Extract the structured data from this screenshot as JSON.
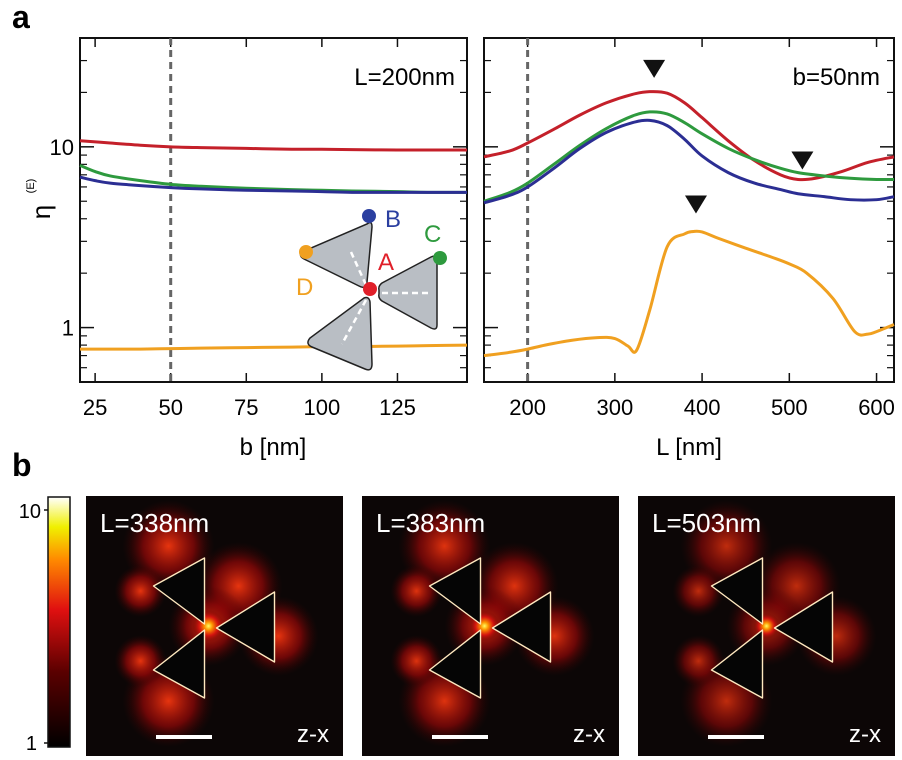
{
  "panel_labels": {
    "a": "a",
    "b": "b"
  },
  "chart_data": [
    {
      "type": "line",
      "id": "left",
      "annotation": "L=200nm",
      "xlabel": "b [nm]",
      "ylabel": "η",
      "ylabel_sup": "(E)",
      "xlim": [
        20,
        148
      ],
      "ylim": [
        0.5,
        40
      ],
      "yscale": "log",
      "xticks": [
        25,
        50,
        75,
        100,
        125
      ],
      "yticks": [
        1,
        10
      ],
      "ytick_labels": [
        "1",
        "10"
      ],
      "vline": 50,
      "series": [
        {
          "color": "#c4202a",
          "x": [
            20,
            30,
            40,
            50,
            60,
            75,
            90,
            100,
            110,
            125,
            135,
            148
          ],
          "y": [
            10.8,
            10.5,
            10.2,
            10.0,
            9.9,
            9.8,
            9.7,
            9.7,
            9.65,
            9.6,
            9.6,
            9.6
          ]
        },
        {
          "color": "#2e9a3e",
          "x": [
            20,
            25,
            30,
            40,
            50,
            60,
            75,
            90,
            100,
            110,
            125,
            135,
            148
          ],
          "y": [
            7.9,
            7.3,
            6.9,
            6.5,
            6.2,
            6.05,
            5.9,
            5.8,
            5.75,
            5.7,
            5.65,
            5.6,
            5.6
          ]
        },
        {
          "color": "#2b2e93",
          "x": [
            20,
            25,
            30,
            40,
            50,
            60,
            75,
            90,
            100,
            110,
            125,
            135,
            148
          ],
          "y": [
            6.8,
            6.5,
            6.3,
            6.1,
            5.95,
            5.85,
            5.75,
            5.7,
            5.65,
            5.6,
            5.6,
            5.6,
            5.6
          ]
        },
        {
          "color": "#f0a020",
          "x": [
            20,
            30,
            40,
            50,
            60,
            75,
            90,
            100,
            110,
            125,
            135,
            148
          ],
          "y": [
            0.76,
            0.76,
            0.76,
            0.765,
            0.77,
            0.775,
            0.78,
            0.785,
            0.785,
            0.79,
            0.795,
            0.8
          ]
        }
      ],
      "inset": {
        "point_labels": [
          "B",
          "C",
          "A",
          "D"
        ],
        "point_colors": [
          "#2b3fa0",
          "#2e9a3e",
          "#e0202a",
          "#f0a020"
        ]
      }
    },
    {
      "type": "line",
      "id": "right",
      "annotation": "b=50nm",
      "xlabel": "L [nm]",
      "xlim": [
        150,
        620
      ],
      "ylim": [
        0.5,
        40
      ],
      "yscale": "log",
      "xticks": [
        200,
        300,
        400,
        500,
        600
      ],
      "yticks": [
        1,
        10
      ],
      "vline": 200,
      "series": [
        {
          "color": "#c4202a",
          "x": [
            150,
            180,
            200,
            230,
            260,
            290,
            320,
            340,
            360,
            380,
            400,
            430,
            460,
            490,
            510,
            530,
            560,
            590,
            620
          ],
          "y": [
            8.8,
            9.5,
            10.5,
            12.5,
            15,
            17.5,
            19.5,
            20.2,
            19.8,
            17.5,
            14.5,
            10.8,
            8.4,
            7.0,
            6.6,
            6.7,
            7.3,
            8.2,
            8.8
          ]
        },
        {
          "color": "#2e9a3e",
          "x": [
            150,
            180,
            200,
            230,
            260,
            290,
            320,
            340,
            360,
            380,
            400,
            430,
            460,
            490,
            510,
            540,
            570,
            600,
            620
          ],
          "y": [
            5.0,
            5.6,
            6.3,
            8.0,
            10.2,
            12.6,
            14.8,
            15.6,
            15.2,
            13.6,
            11.8,
            9.8,
            8.5,
            7.6,
            7.2,
            6.9,
            6.7,
            6.6,
            6.6
          ]
        },
        {
          "color": "#2b2e93",
          "x": [
            150,
            180,
            200,
            230,
            260,
            290,
            320,
            340,
            360,
            380,
            400,
            430,
            460,
            490,
            510,
            540,
            570,
            600,
            620
          ],
          "y": [
            4.9,
            5.4,
            6.0,
            7.6,
            9.8,
            12.0,
            13.6,
            14.0,
            13.1,
            11.0,
            8.9,
            7.2,
            6.3,
            5.8,
            5.5,
            5.3,
            5.1,
            5.1,
            5.3
          ]
        },
        {
          "color": "#f0a020",
          "x": [
            150,
            180,
            200,
            220,
            250,
            280,
            300,
            315,
            325,
            340,
            360,
            380,
            390,
            400,
            420,
            450,
            480,
            500,
            520,
            550,
            575,
            590,
            600,
            620
          ],
          "y": [
            0.7,
            0.73,
            0.76,
            0.8,
            0.85,
            0.88,
            0.87,
            0.79,
            0.75,
            1.25,
            2.8,
            3.3,
            3.4,
            3.38,
            3.1,
            2.75,
            2.45,
            2.25,
            2.0,
            1.45,
            0.95,
            0.92,
            0.95,
            1.04
          ]
        }
      ],
      "markers": [
        {
          "x": 345,
          "y": 27,
          "shape": "triangle-down"
        },
        {
          "x": 515,
          "y": 8.4,
          "shape": "triangle-down"
        },
        {
          "x": 393,
          "y": 4.8,
          "shape": "triangle-down"
        }
      ]
    }
  ],
  "colorbar": {
    "max_label": "10",
    "min_label": "1"
  },
  "field_maps": [
    {
      "label": "L=338nm",
      "plane": "z-x"
    },
    {
      "label": "L=383nm",
      "plane": "z-x"
    },
    {
      "label": "L=503nm",
      "plane": "z-x"
    }
  ]
}
